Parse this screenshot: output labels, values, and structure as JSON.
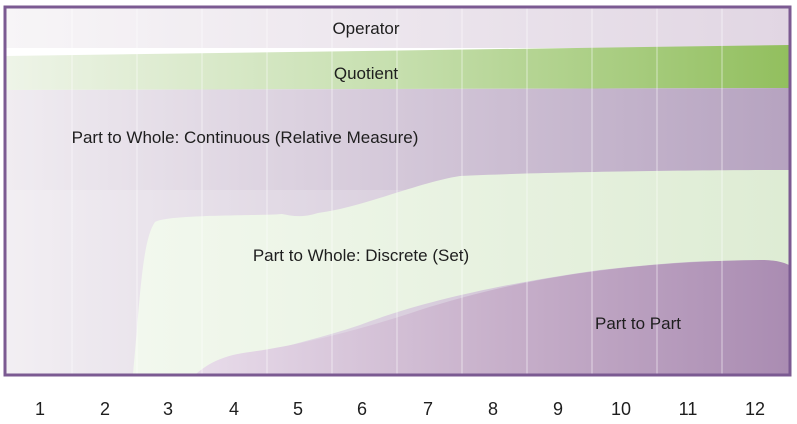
{
  "bands": {
    "operator": "Operator",
    "quotient": "Quotient",
    "part_whole_continuous": "Part to Whole: Continuous (Relative Measure)",
    "part_whole_discrete": "Part to Whole: Discrete (Set)",
    "part_to_part": "Part to Part"
  },
  "axis": {
    "ticks": [
      "1",
      "2",
      "3",
      "4",
      "5",
      "6",
      "7",
      "8",
      "9",
      "10",
      "11",
      "12"
    ]
  },
  "colors": {
    "frame": "#7b5a92",
    "operator_band": "#ece6ee",
    "quotient_band": "#94c062",
    "continuous_band": "#b8a6c4",
    "discrete_band": "#e2efd9",
    "part_to_part_band": "#ad90b5"
  }
}
